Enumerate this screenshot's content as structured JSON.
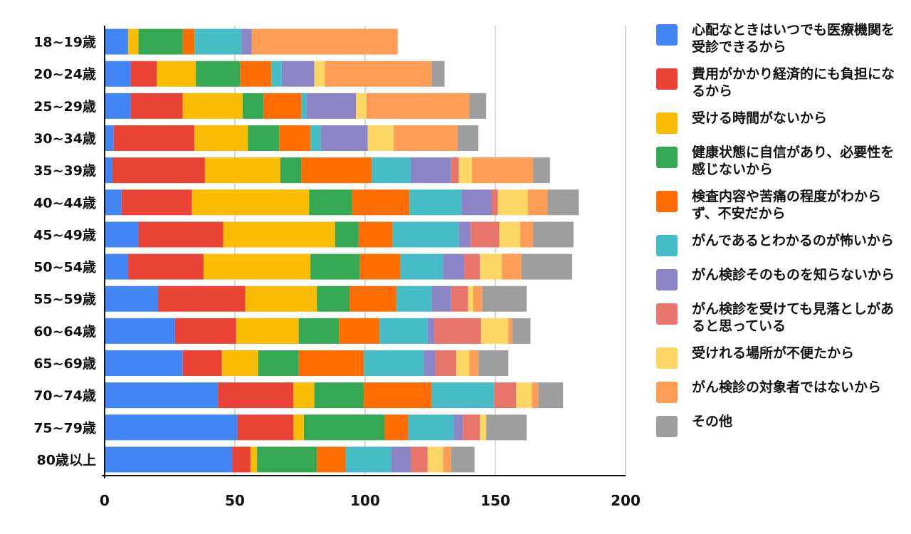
{
  "chart_data": {
    "type": "bar",
    "orientation": "horizontal",
    "stacked": true,
    "xlim": [
      0,
      200
    ],
    "x_ticks": [
      "0",
      "50",
      "100",
      "150",
      "200"
    ],
    "grid": true,
    "legend_position": "right",
    "categories": [
      "18~19歳",
      "20~24歳",
      "25~29歳",
      "30~34歳",
      "35~39歳",
      "40~44歳",
      "45~49歳",
      "50~54歳",
      "55~59歳",
      "60~64歳",
      "65~69歳",
      "70~74歳",
      "75~79歳",
      "80歳以上"
    ],
    "series": [
      {
        "name": "心配なときはいつでも医療機関を受診できるから",
        "color": "#4285f4",
        "values": [
          9,
          10,
          10,
          3.5,
          3,
          6.5,
          13,
          9,
          20.5,
          27,
          30,
          43.5,
          51,
          49
        ]
      },
      {
        "name": "費用がかかり経済的にも負担になるから",
        "color": "#ea4335",
        "values": [
          0,
          10,
          20,
          31,
          35.5,
          27,
          32.5,
          29,
          33.5,
          23.5,
          15,
          29,
          21.5,
          7
        ]
      },
      {
        "name": "受ける時間がないから",
        "color": "#fbbc04",
        "values": [
          4,
          15,
          23,
          20.5,
          29,
          45,
          43,
          41,
          27.5,
          24,
          14,
          8,
          4,
          2.5
        ]
      },
      {
        "name": "健康状態に自信があり、必要性を感じないから",
        "color": "#34a853",
        "values": [
          17,
          17,
          8,
          12,
          8,
          16.5,
          9,
          19,
          12.5,
          15.5,
          15.5,
          19,
          31,
          23
        ]
      },
      {
        "name": "検査内容や苦痛の程度がわからず、不安だから",
        "color": "#ff6d01",
        "values": [
          4.5,
          12,
          14.5,
          12,
          27,
          22,
          13,
          15.5,
          18,
          15.5,
          25,
          26,
          9,
          11
        ]
      },
      {
        "name": "がんであるとわかるのが怖いから",
        "color": "#46bdc6",
        "values": [
          18,
          4,
          2,
          4,
          15,
          20,
          25.5,
          16.5,
          13.5,
          18.5,
          23,
          24,
          17.5,
          17.5
        ]
      },
      {
        "name": "がん検診そのものを知らないから",
        "color": "#8b85c8",
        "values": [
          4,
          12.5,
          19,
          18,
          15.5,
          11.5,
          4.5,
          8,
          7.5,
          2.5,
          4.5,
          0,
          3.5,
          7.5
        ]
      },
      {
        "name": "がん検診を受けても見落としがあると思っている",
        "color": "#e8756b",
        "values": [
          0,
          0,
          0,
          0,
          3,
          2.5,
          11,
          6,
          6.5,
          18,
          8,
          8.5,
          6.5,
          6.5
        ]
      },
      {
        "name": "受けれる場所が不便たから",
        "color": "#fdd663",
        "values": [
          0,
          4,
          4,
          10,
          5,
          11.5,
          8,
          8.5,
          2,
          10.5,
          5,
          6,
          2.5,
          6
        ]
      },
      {
        "name": "がん検診の対象者ではないから",
        "color": "#ff9d57",
        "values": [
          56,
          41,
          39.5,
          24.5,
          23.5,
          7.5,
          5,
          7.5,
          3.5,
          1.5,
          3.5,
          2.5,
          0,
          3
        ]
      },
      {
        "name": "その他",
        "color": "#9e9e9e",
        "values": [
          0,
          5,
          6.5,
          8,
          6.5,
          12,
          15.5,
          19.5,
          17,
          7,
          11.5,
          9.5,
          15.5,
          9
        ]
      }
    ]
  }
}
